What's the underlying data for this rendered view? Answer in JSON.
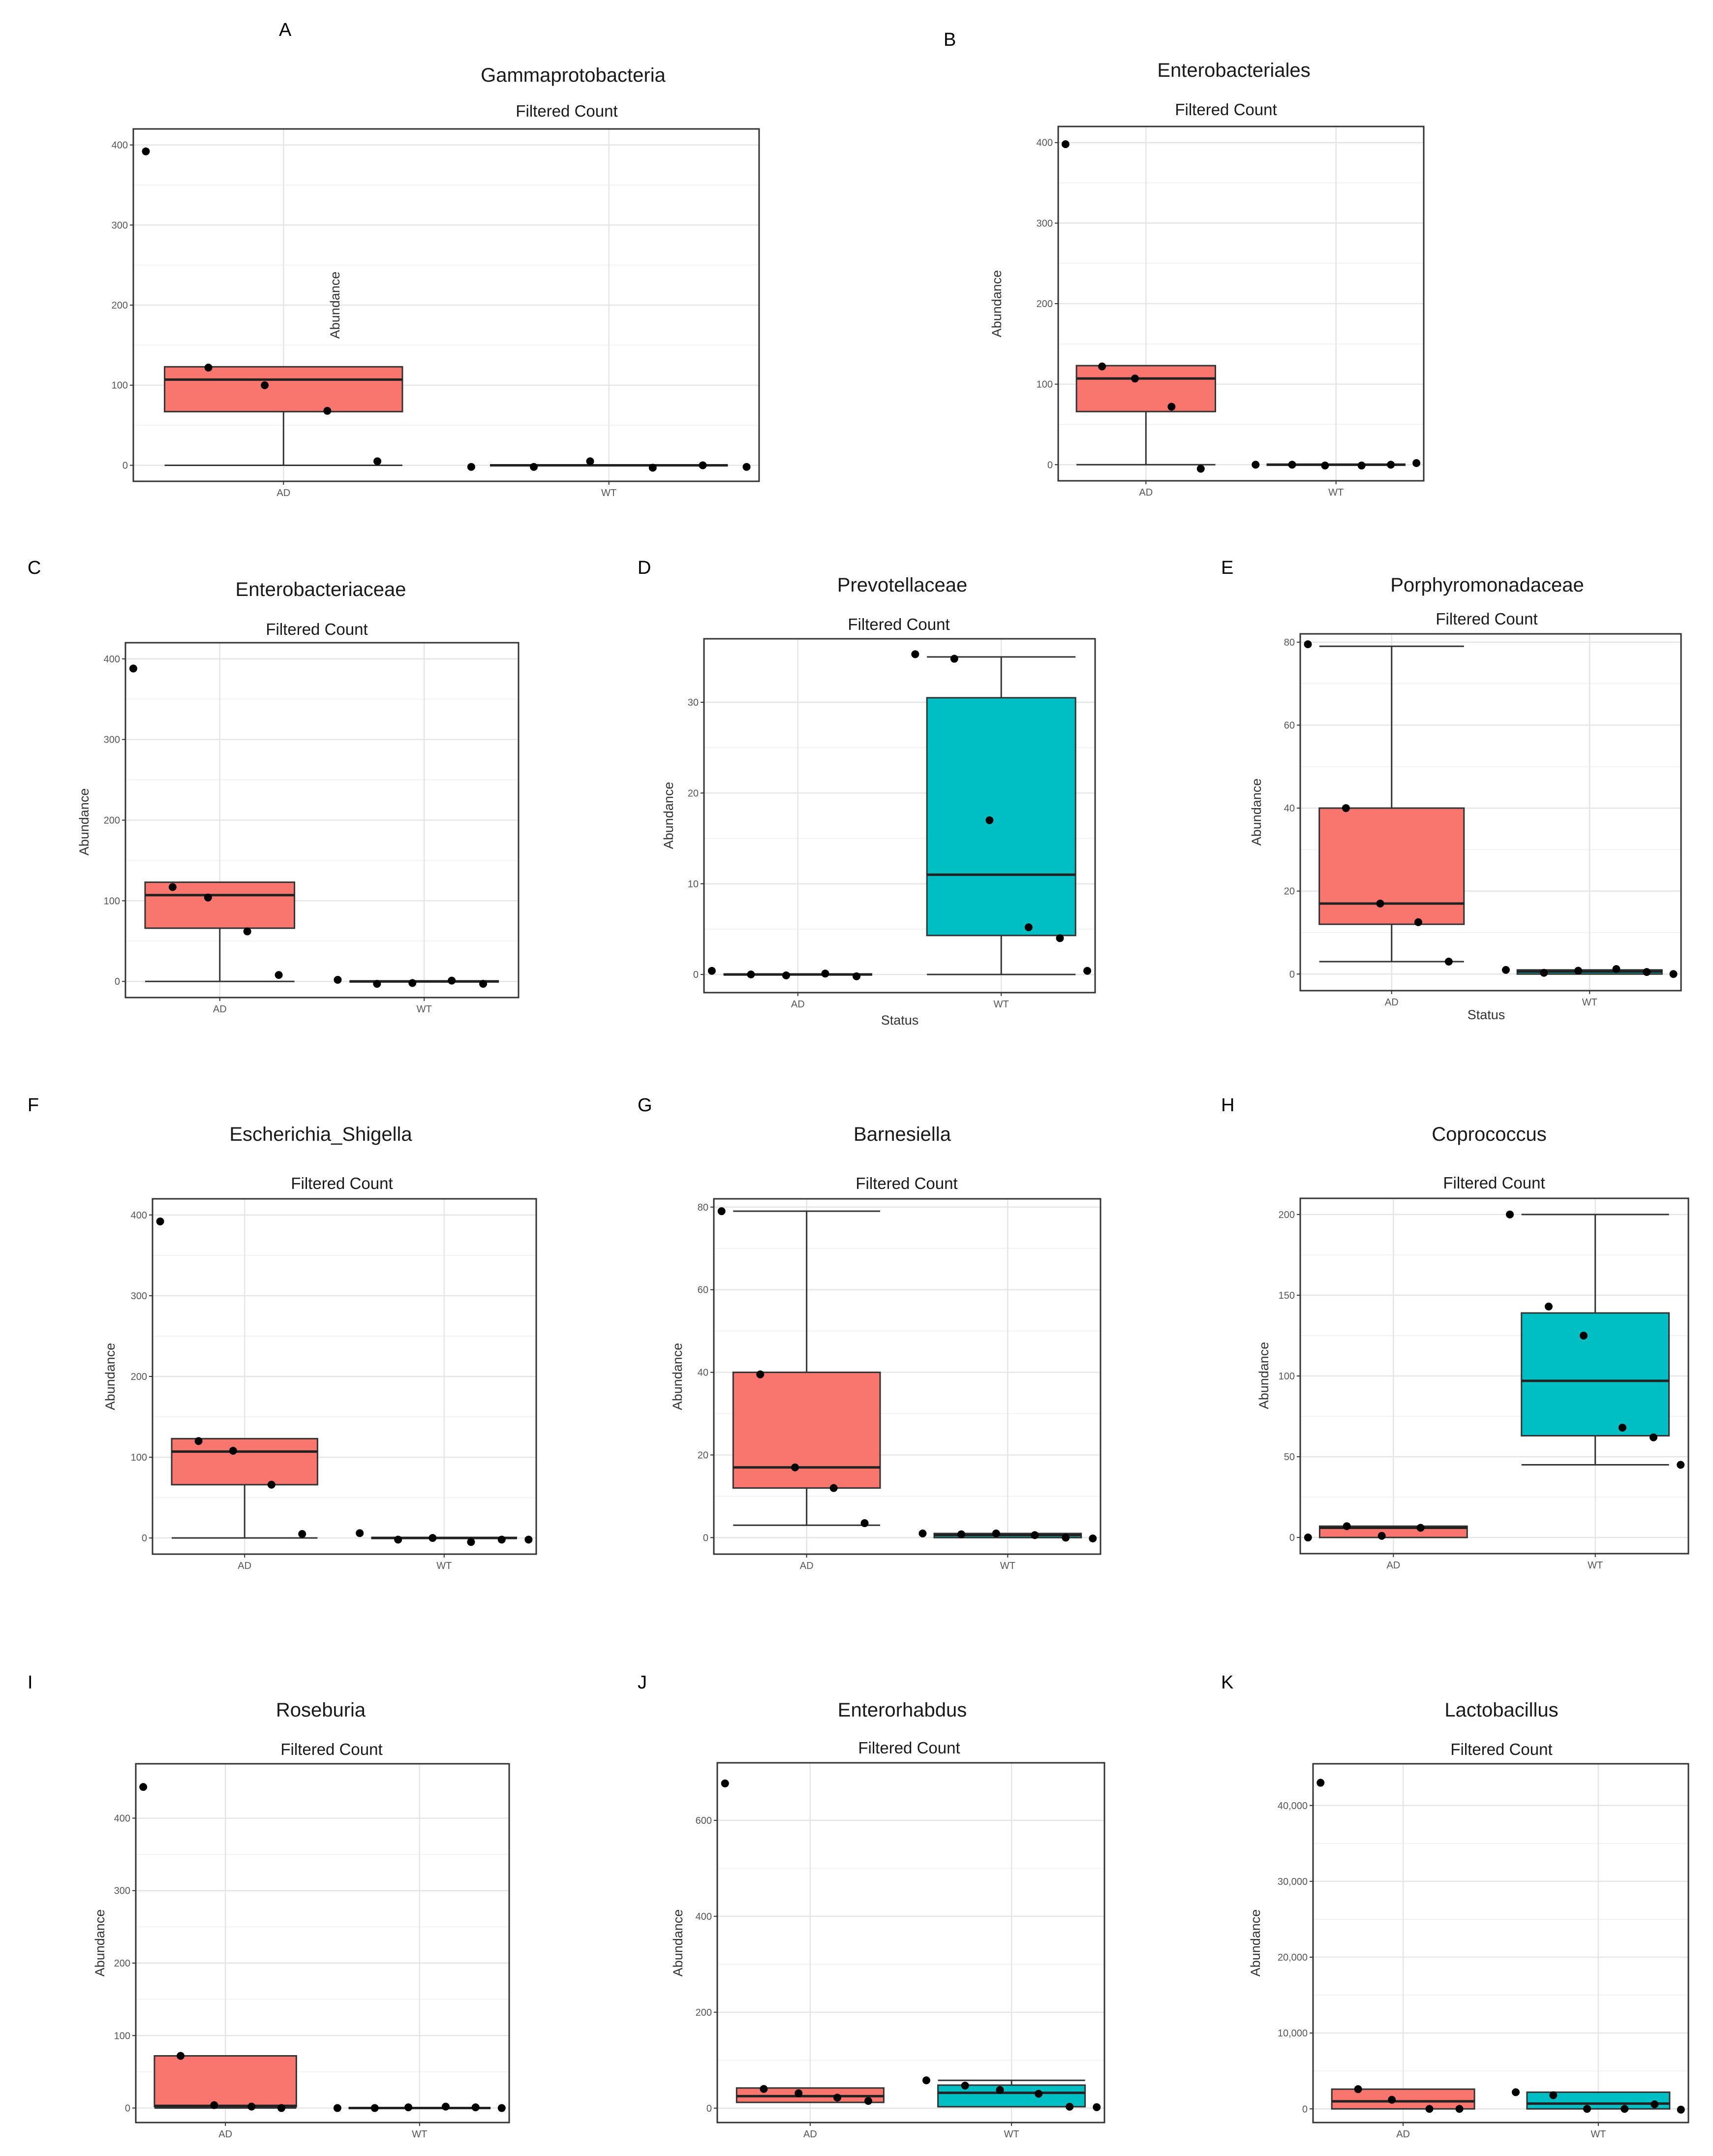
{
  "colors": {
    "AD": "#F8766D",
    "WT": "#00BFC4",
    "point": "#000000",
    "grid": "#E5E5E5",
    "frame": "#333333"
  },
  "chart_data": [
    {
      "panel": "A",
      "type": "box",
      "title": "Gammaprotobacteria",
      "subtitle": "Filtered Count",
      "xlabel": "",
      "ylabel": "Abundance",
      "categories": [
        "AD",
        "WT"
      ],
      "ylim": [
        -20,
        420
      ],
      "yticks": [
        0,
        100,
        200,
        300,
        400
      ],
      "yticklabels": [
        "0",
        "100",
        "200",
        "300",
        "400"
      ],
      "boxes": [
        {
          "group": "AD",
          "q1": 67,
          "median": 107,
          "q3": 123,
          "whisker_low": 0,
          "whisker_high": 123,
          "fill": "AD"
        },
        {
          "group": "WT",
          "q1": 0,
          "median": 0,
          "q3": 0,
          "whisker_low": 0,
          "whisker_high": 0,
          "fill": "WT"
        }
      ],
      "points": [
        {
          "group": "AD",
          "values": [
            392,
            122,
            100,
            68,
            5
          ]
        },
        {
          "group": "WT",
          "values": [
            -2,
            -2,
            5,
            -3,
            0,
            -2
          ]
        }
      ]
    },
    {
      "panel": "B",
      "type": "box",
      "title": "Enterobacteriales",
      "subtitle": "Filtered Count",
      "xlabel": "",
      "ylabel": "Abundance",
      "categories": [
        "AD",
        "WT"
      ],
      "ylim": [
        -20,
        420
      ],
      "yticks": [
        0,
        100,
        200,
        300,
        400
      ],
      "yticklabels": [
        "0",
        "100",
        "200",
        "300",
        "400"
      ],
      "boxes": [
        {
          "group": "AD",
          "q1": 66,
          "median": 107,
          "q3": 123,
          "whisker_low": 0,
          "whisker_high": 123,
          "fill": "AD"
        },
        {
          "group": "WT",
          "q1": 0,
          "median": 0,
          "q3": 0,
          "whisker_low": 0,
          "whisker_high": 0,
          "fill": "WT"
        }
      ],
      "points": [
        {
          "group": "AD",
          "values": [
            398,
            122,
            107,
            72,
            -5
          ]
        },
        {
          "group": "WT",
          "values": [
            0,
            0,
            -1,
            -1,
            0,
            2
          ]
        }
      ]
    },
    {
      "panel": "C",
      "type": "box",
      "title": "Enterobacteriaceae",
      "subtitle": "Filtered Count",
      "xlabel": "",
      "ylabel": "Abundance",
      "categories": [
        "AD",
        "WT"
      ],
      "ylim": [
        -20,
        420
      ],
      "yticks": [
        0,
        100,
        200,
        300,
        400
      ],
      "yticklabels": [
        "0",
        "100",
        "200",
        "300",
        "400"
      ],
      "boxes": [
        {
          "group": "AD",
          "q1": 66,
          "median": 107,
          "q3": 123,
          "whisker_low": 0,
          "whisker_high": 123,
          "fill": "AD"
        },
        {
          "group": "WT",
          "q1": 0,
          "median": 0,
          "q3": 0,
          "whisker_low": 0,
          "whisker_high": 0,
          "fill": "WT"
        }
      ],
      "points": [
        {
          "group": "AD",
          "values": [
            388,
            117,
            104,
            62,
            8
          ]
        },
        {
          "group": "WT",
          "values": [
            2,
            -3,
            -2,
            1,
            -3
          ]
        }
      ]
    },
    {
      "panel": "D",
      "type": "box",
      "title": "Prevotellaceae",
      "subtitle": "Filtered Count",
      "xlabel": "Status",
      "ylabel": "Abundance",
      "categories": [
        "AD",
        "WT"
      ],
      "ylim": [
        -2,
        37
      ],
      "yticks": [
        0,
        10,
        20,
        30
      ],
      "yticklabels": [
        "0",
        "10",
        "20",
        "30"
      ],
      "boxes": [
        {
          "group": "AD",
          "q1": 0,
          "median": 0,
          "q3": 0,
          "whisker_low": 0,
          "whisker_high": 0,
          "fill": "AD"
        },
        {
          "group": "WT",
          "q1": 4.3,
          "median": 11,
          "q3": 30.5,
          "whisker_low": 0,
          "whisker_high": 35,
          "fill": "WT"
        }
      ],
      "points": [
        {
          "group": "AD",
          "values": [
            0.4,
            0,
            -0.1,
            0.1,
            -0.2
          ]
        },
        {
          "group": "WT",
          "values": [
            35.3,
            34.8,
            17,
            5.2,
            4,
            0.4
          ]
        }
      ]
    },
    {
      "panel": "E",
      "type": "box",
      "title": "Porphyromonadaceae",
      "subtitle": "Filtered Count",
      "xlabel": "Status",
      "ylabel": "Abundance",
      "categories": [
        "AD",
        "WT"
      ],
      "ylim": [
        -4,
        82
      ],
      "yticks": [
        0,
        20,
        40,
        60,
        80
      ],
      "yticklabels": [
        "0",
        "20",
        "40",
        "60",
        "80"
      ],
      "boxes": [
        {
          "group": "AD",
          "q1": 12,
          "median": 17,
          "q3": 40,
          "whisker_low": 3,
          "whisker_high": 79,
          "fill": "AD"
        },
        {
          "group": "WT",
          "q1": 0,
          "median": 0.6,
          "q3": 1,
          "whisker_low": 0,
          "whisker_high": 1,
          "fill": "WT"
        }
      ],
      "points": [
        {
          "group": "AD",
          "values": [
            79.5,
            40,
            17,
            12.5,
            3
          ]
        },
        {
          "group": "WT",
          "values": [
            1,
            0.3,
            0.8,
            1.2,
            0.5,
            0
          ]
        }
      ]
    },
    {
      "panel": "F",
      "type": "box",
      "title": "Escherichia_Shigella",
      "subtitle": "Filtered Count",
      "xlabel": "",
      "ylabel": "Abundance",
      "categories": [
        "AD",
        "WT"
      ],
      "ylim": [
        -20,
        420
      ],
      "yticks": [
        0,
        100,
        200,
        300,
        400
      ],
      "yticklabels": [
        "0",
        "100",
        "200",
        "300",
        "400"
      ],
      "boxes": [
        {
          "group": "AD",
          "q1": 66,
          "median": 107,
          "q3": 123,
          "whisker_low": 0,
          "whisker_high": 123,
          "fill": "AD"
        },
        {
          "group": "WT",
          "q1": 0,
          "median": 0,
          "q3": 0,
          "whisker_low": 0,
          "whisker_high": 0,
          "fill": "WT"
        }
      ],
      "points": [
        {
          "group": "AD",
          "values": [
            392,
            120,
            108,
            66,
            5
          ]
        },
        {
          "group": "WT",
          "values": [
            6,
            -2,
            0,
            -5,
            -2,
            -2
          ]
        }
      ]
    },
    {
      "panel": "G",
      "type": "box",
      "title": "Barnesiella",
      "subtitle": "Filtered Count",
      "xlabel": "",
      "ylabel": "Abundance",
      "categories": [
        "AD",
        "WT"
      ],
      "ylim": [
        -4,
        82
      ],
      "yticks": [
        0,
        20,
        40,
        60,
        80
      ],
      "yticklabels": [
        "0",
        "20",
        "40",
        "60",
        "80"
      ],
      "boxes": [
        {
          "group": "AD",
          "q1": 12,
          "median": 17,
          "q3": 40,
          "whisker_low": 3,
          "whisker_high": 79,
          "fill": "AD"
        },
        {
          "group": "WT",
          "q1": 0,
          "median": 0.6,
          "q3": 1,
          "whisker_low": 0,
          "whisker_high": 1,
          "fill": "WT"
        }
      ],
      "points": [
        {
          "group": "AD",
          "values": [
            79,
            39.5,
            17,
            12,
            3.5
          ]
        },
        {
          "group": "WT",
          "values": [
            1,
            0.8,
            1,
            0.6,
            0,
            -0.2
          ]
        }
      ]
    },
    {
      "panel": "H",
      "type": "box",
      "title": "Coprococcus",
      "subtitle": "Filtered Count",
      "xlabel": "",
      "ylabel": "Abundance",
      "categories": [
        "AD",
        "WT"
      ],
      "ylim": [
        -10,
        210
      ],
      "yticks": [
        0,
        50,
        100,
        150,
        200
      ],
      "yticklabels": [
        "0",
        "50",
        "100",
        "150",
        "200"
      ],
      "boxes": [
        {
          "group": "AD",
          "q1": 0,
          "median": 6,
          "q3": 7,
          "whisker_low": 0,
          "whisker_high": 7,
          "fill": "AD"
        },
        {
          "group": "WT",
          "q1": 63,
          "median": 97,
          "q3": 139,
          "whisker_low": 45,
          "whisker_high": 200,
          "fill": "WT"
        }
      ],
      "points": [
        {
          "group": "AD",
          "values": [
            0,
            7,
            1,
            6
          ]
        },
        {
          "group": "WT",
          "values": [
            200,
            143,
            125,
            68,
            62,
            45
          ]
        }
      ]
    },
    {
      "panel": "I",
      "type": "box",
      "title": "Roseburia",
      "subtitle": "Filtered Count",
      "xlabel": "",
      "ylabel": "Abundance",
      "categories": [
        "AD",
        "WT"
      ],
      "ylim": [
        -20,
        475
      ],
      "yticks": [
        0,
        100,
        200,
        300,
        400
      ],
      "yticklabels": [
        "0",
        "100",
        "200",
        "300",
        "400"
      ],
      "boxes": [
        {
          "group": "AD",
          "q1": 2,
          "median": 3,
          "q3": 72,
          "whisker_low": 0,
          "whisker_high": 72,
          "fill": "AD"
        },
        {
          "group": "WT",
          "q1": 0,
          "median": 0,
          "q3": 0,
          "whisker_low": 0,
          "whisker_high": 0,
          "fill": "WT"
        }
      ],
      "points": [
        {
          "group": "AD",
          "values": [
            443,
            72,
            4,
            2,
            0
          ]
        },
        {
          "group": "WT",
          "values": [
            0,
            0,
            1,
            2,
            1,
            0
          ]
        }
      ]
    },
    {
      "panel": "J",
      "type": "box",
      "title": "Enterorhabdus",
      "subtitle": "Filtered Count",
      "xlabel": "",
      "ylabel": "Abundance",
      "categories": [
        "AD",
        "WT"
      ],
      "ylim": [
        -30,
        720
      ],
      "yticks": [
        0,
        200,
        400,
        600
      ],
      "yticklabels": [
        "0",
        "200",
        "400",
        "600"
      ],
      "boxes": [
        {
          "group": "AD",
          "q1": 12,
          "median": 25,
          "q3": 42,
          "whisker_low": 12,
          "whisker_high": 42,
          "fill": "AD"
        },
        {
          "group": "WT",
          "q1": 3,
          "median": 32,
          "q3": 48,
          "whisker_low": 3,
          "whisker_high": 58,
          "fill": "WT"
        }
      ],
      "points": [
        {
          "group": "AD",
          "values": [
            677,
            40,
            31,
            22,
            15
          ]
        },
        {
          "group": "WT",
          "values": [
            58,
            47,
            38,
            30,
            3,
            2
          ]
        }
      ]
    },
    {
      "panel": "K",
      "type": "box",
      "title": "Lactobacillus",
      "subtitle": "Filtered Count",
      "xlabel": "",
      "ylabel": "Abundance",
      "categories": [
        "AD",
        "WT"
      ],
      "ylim": [
        -1800,
        45500
      ],
      "yticks": [
        0,
        10000,
        20000,
        30000,
        40000
      ],
      "yticklabels": [
        "0",
        "10,000",
        "20,000",
        "30,000",
        "40,000"
      ],
      "boxes": [
        {
          "group": "AD",
          "q1": 0,
          "median": 1000,
          "q3": 2600,
          "whisker_low": 0,
          "whisker_high": 2600,
          "fill": "AD"
        },
        {
          "group": "WT",
          "q1": 0,
          "median": 700,
          "q3": 2200,
          "whisker_low": 0,
          "whisker_high": 2200,
          "fill": "WT"
        }
      ],
      "points": [
        {
          "group": "AD",
          "values": [
            43000,
            2600,
            1200,
            0,
            0
          ]
        },
        {
          "group": "WT",
          "values": [
            2200,
            1800,
            0,
            0,
            600,
            -100
          ]
        }
      ]
    }
  ]
}
